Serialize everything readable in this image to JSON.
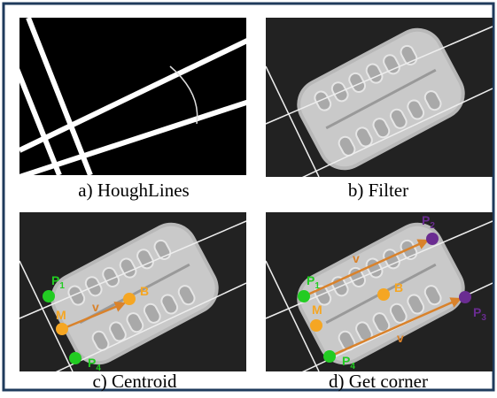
{
  "panels": [
    {
      "caption": "a) HoughLines"
    },
    {
      "caption": "b) Filter"
    },
    {
      "caption": "c) Centroid",
      "points": {
        "p1": {
          "letter": "P",
          "sub": "1"
        },
        "p4": {
          "letter": "P",
          "sub": "4"
        },
        "m": "M",
        "b": "B",
        "v": "v"
      }
    },
    {
      "caption": "d) Get corner",
      "points": {
        "p1": {
          "letter": "P",
          "sub": "1"
        },
        "p2": {
          "letter": "P",
          "sub": "2"
        },
        "p3": {
          "letter": "P",
          "sub": "3"
        },
        "p4": {
          "letter": "P",
          "sub": "4"
        },
        "m": "M",
        "b": "B",
        "v1": "v",
        "v2": "v"
      }
    }
  ]
}
